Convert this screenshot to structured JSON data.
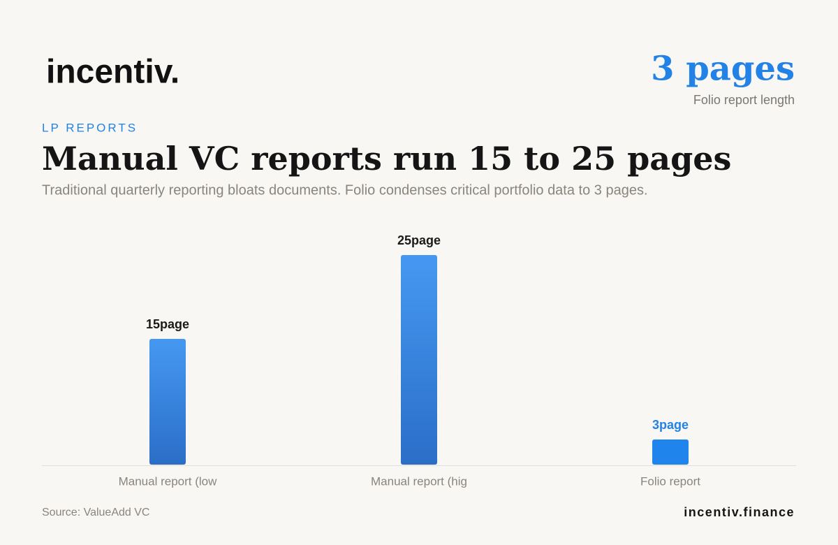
{
  "brand": "incentiv.",
  "kpi": {
    "value": "3 pages",
    "caption": "Folio report length"
  },
  "eyebrow": "LP REPORTS",
  "footer": {
    "source": "Source: ValueAdd VC",
    "site": "incentiv.finance"
  },
  "chart_data": {
    "type": "bar",
    "title": "Manual VC reports run 15 to 25 pages",
    "subtitle": "Traditional quarterly reporting bloats documents. Folio condenses critical portfolio data to 3 pages.",
    "categories": [
      "Manual report (low",
      "Manual report (hig",
      "Folio report"
    ],
    "values": [
      15,
      25,
      3
    ],
    "value_labels": [
      "15page",
      "25page",
      "3page"
    ],
    "colors": [
      "#3a8bea",
      "#3a8bea",
      "#1f84ec"
    ],
    "label_colors": [
      "#1a1a1a",
      "#1a1a1a",
      "#2382e6"
    ]
  }
}
